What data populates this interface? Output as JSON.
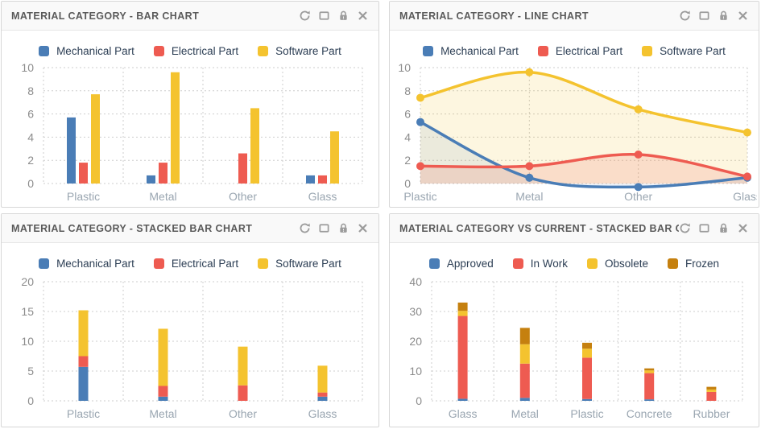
{
  "page": {
    "background": "#ffffff"
  },
  "header_icons": [
    "refresh-icon",
    "maximize-icon",
    "lock-icon",
    "close-icon"
  ],
  "colors": {
    "blue": "#4a7db6",
    "red": "#ee5b51",
    "yellow": "#f4c32f",
    "dark_orange": "#c5800f",
    "legend_text": "#2c3e54",
    "grid": "#cdcdcd",
    "tick_label": "#8c8c8c",
    "category_label": "#9aa6b1",
    "panel_border": "#d7d7d7",
    "header_background": "#f9f9f9",
    "title_text": "#5a5a5a",
    "icon": "#9c9c9c"
  },
  "panels": [
    {
      "title": "MATERIAL CATEGORY - BAR CHART"
    },
    {
      "title": "MATERIAL CATEGORY - LINE CHART"
    },
    {
      "title": "MATERIAL CATEGORY - STACKED BAR CHART"
    },
    {
      "title": "MATERIAL CATEGORY VS CURRENT - STACKED BAR CHART"
    }
  ],
  "chart_data": [
    {
      "type": "bar",
      "stacked": false,
      "title": "MATERIAL CATEGORY - BAR CHART",
      "categories": [
        "Plastic",
        "Metal",
        "Other",
        "Glass"
      ],
      "series": [
        {
          "name": "Mechanical Part",
          "color": "#4a7db6",
          "values": [
            5.7,
            0.7,
            0,
            0.7
          ]
        },
        {
          "name": "Electrical Part",
          "color": "#ee5b51",
          "values": [
            1.8,
            1.8,
            2.6,
            0.7
          ]
        },
        {
          "name": "Software Part",
          "color": "#f4c32f",
          "values": [
            7.7,
            9.6,
            6.5,
            4.5
          ]
        }
      ],
      "ylim": [
        0,
        10
      ],
      "ytick_step": 2,
      "grid": true,
      "legend_position": "top"
    },
    {
      "type": "line",
      "title": "MATERIAL CATEGORY - LINE CHART",
      "categories": [
        "Plastic",
        "Metal",
        "Other",
        "Glass"
      ],
      "series": [
        {
          "name": "Mechanical Part",
          "color": "#4a7db6",
          "values": [
            5.3,
            0.5,
            -0.3,
            0.5
          ]
        },
        {
          "name": "Electrical Part",
          "color": "#ee5b51",
          "values": [
            1.5,
            1.5,
            2.5,
            0.6
          ]
        },
        {
          "name": "Software Part",
          "color": "#f4c32f",
          "values": [
            7.4,
            9.6,
            6.4,
            4.4
          ]
        }
      ],
      "ylim": [
        0,
        10
      ],
      "ytick_step": 2,
      "grid": true,
      "legend_position": "top",
      "area_fill": true,
      "smooth": true,
      "markers": true
    },
    {
      "type": "bar",
      "stacked": true,
      "title": "MATERIAL CATEGORY - STACKED BAR CHART",
      "categories": [
        "Plastic",
        "Metal",
        "Other",
        "Glass"
      ],
      "series": [
        {
          "name": "Mechanical Part",
          "color": "#4a7db6",
          "values": [
            5.7,
            0.7,
            0,
            0.7
          ]
        },
        {
          "name": "Electrical Part",
          "color": "#ee5b51",
          "values": [
            1.8,
            1.8,
            2.6,
            0.7
          ]
        },
        {
          "name": "Software Part",
          "color": "#f4c32f",
          "values": [
            7.7,
            9.6,
            6.5,
            4.5
          ]
        }
      ],
      "ylim": [
        0,
        20
      ],
      "ytick_step": 5,
      "grid": true,
      "legend_position": "top"
    },
    {
      "type": "bar",
      "stacked": true,
      "title": "MATERIAL CATEGORY VS CURRENT - STACKED BAR CHART",
      "categories": [
        "Glass",
        "Metal",
        "Plastic",
        "Concrete",
        "Rubber"
      ],
      "series": [
        {
          "name": "Approved",
          "color": "#4a7db6",
          "values": [
            0.7,
            1.0,
            0.6,
            0.5,
            0
          ]
        },
        {
          "name": "In Work",
          "color": "#ee5b51",
          "values": [
            27.8,
            11.5,
            13.9,
            8.8,
            3.0
          ]
        },
        {
          "name": "Obsolete",
          "color": "#f4c32f",
          "values": [
            1.7,
            6.5,
            3.0,
            0.9,
            0.8
          ]
        },
        {
          "name": "Frozen",
          "color": "#c5800f",
          "values": [
            2.8,
            5.5,
            2.0,
            0.7,
            0.9
          ]
        }
      ],
      "ylim": [
        0,
        40
      ],
      "ytick_step": 10,
      "grid": true,
      "legend_position": "top"
    }
  ]
}
